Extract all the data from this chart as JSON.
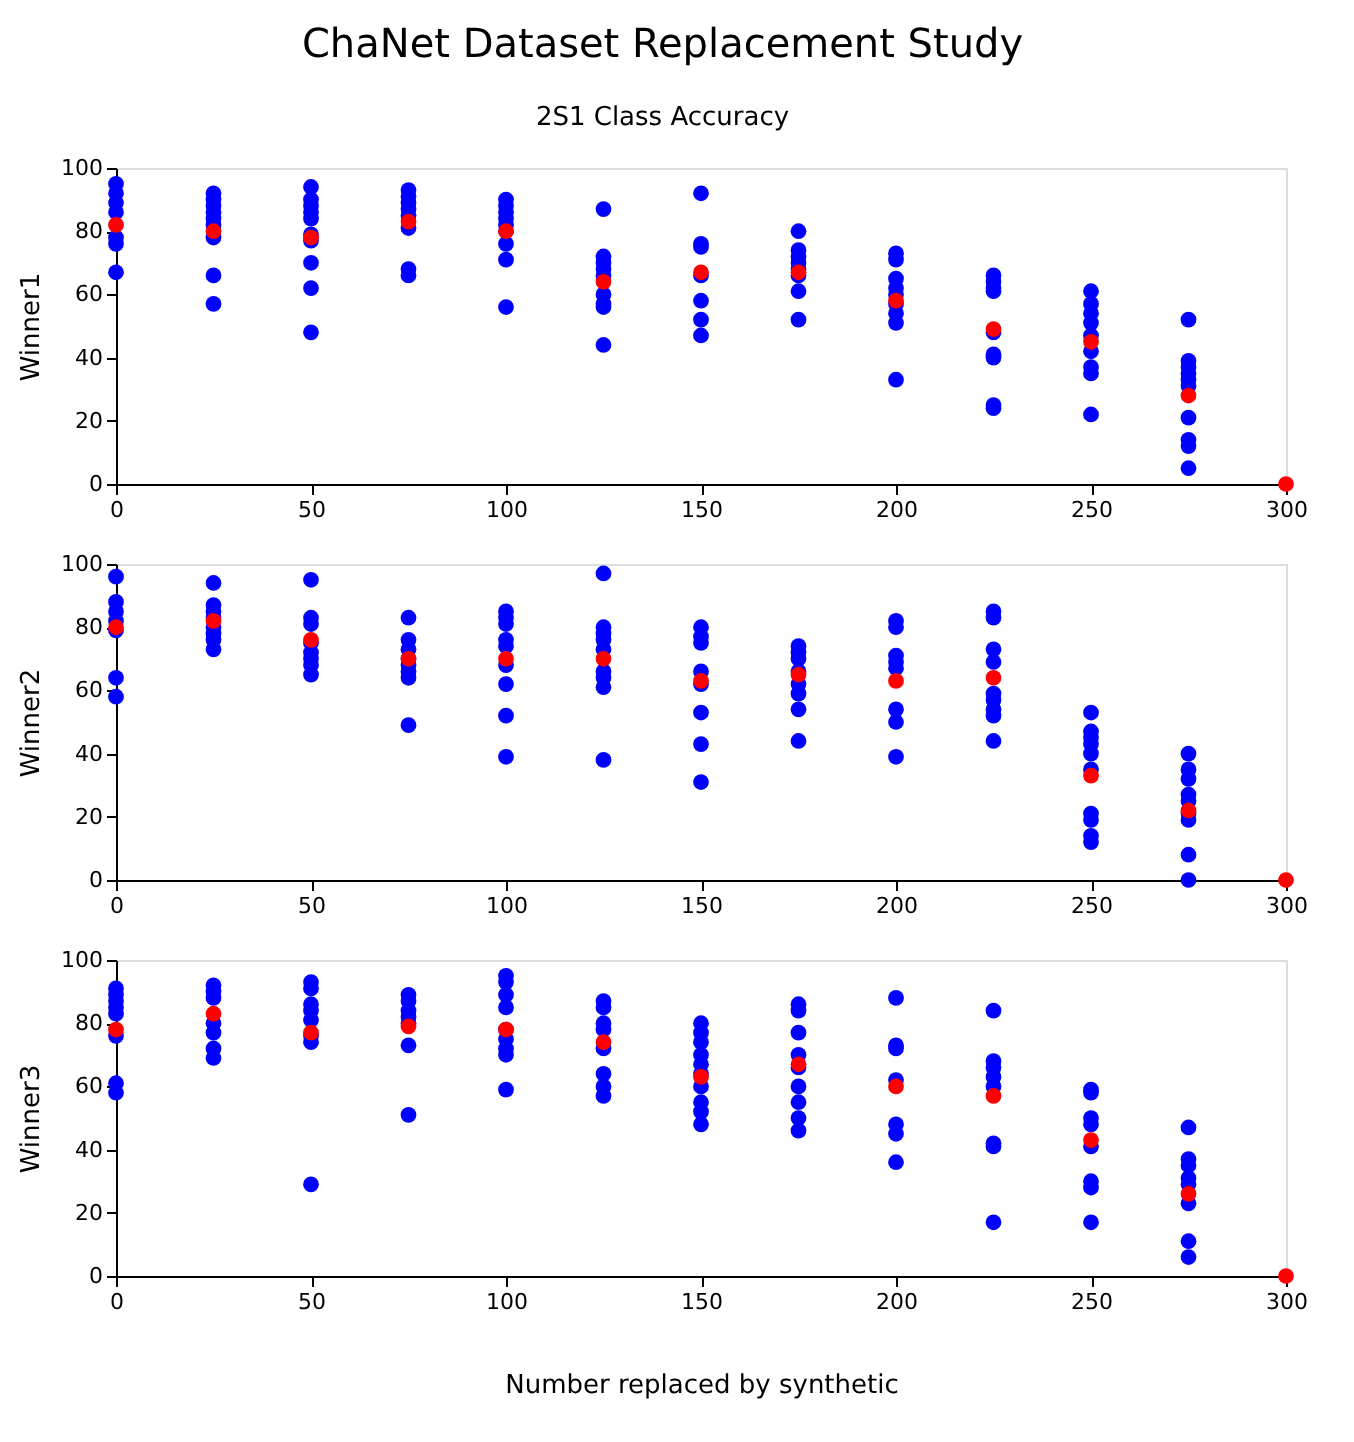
{
  "chart_data": [
    {
      "type": "scatter",
      "title": "ChaNet Dataset Replacement Study",
      "subtitle": "2S1 Class Accuracy",
      "ylabel": "Winner1",
      "marker": "circle",
      "xlim": [
        0,
        300
      ],
      "xticks": [
        0,
        50,
        100,
        150,
        200,
        250,
        300
      ],
      "ylim": [
        0,
        100
      ],
      "yticks": [
        0,
        20,
        40,
        60,
        80,
        100
      ],
      "series": [
        {
          "color": "#0000ff",
          "x": [
            0,
            0,
            0,
            0,
            0,
            0,
            0,
            25,
            25,
            25,
            25,
            25,
            25,
            25,
            25,
            25,
            50,
            50,
            50,
            50,
            50,
            50,
            50,
            50,
            50,
            50,
            75,
            75,
            75,
            75,
            75,
            75,
            75,
            75,
            100,
            100,
            100,
            100,
            100,
            100,
            100,
            100,
            100,
            125,
            125,
            125,
            125,
            125,
            125,
            125,
            125,
            125,
            150,
            150,
            150,
            150,
            150,
            150,
            150,
            175,
            175,
            175,
            175,
            175,
            175,
            175,
            175,
            200,
            200,
            200,
            200,
            200,
            200,
            200,
            200,
            200,
            225,
            225,
            225,
            225,
            225,
            225,
            225,
            225,
            225,
            250,
            250,
            250,
            250,
            250,
            250,
            250,
            250,
            250,
            275,
            275,
            275,
            275,
            275,
            275,
            275,
            275,
            275,
            275
          ],
          "values": [
            95,
            92,
            89,
            86,
            78,
            76,
            67,
            92,
            90,
            88,
            86,
            84,
            82,
            78,
            66,
            57,
            94,
            90,
            88,
            86,
            84,
            79,
            77,
            70,
            62,
            48,
            93,
            91,
            89,
            87,
            85,
            81,
            68,
            66,
            90,
            88,
            86,
            84,
            82,
            80,
            76,
            71,
            56,
            87,
            72,
            70,
            68,
            66,
            60,
            57,
            56,
            44,
            92,
            76,
            75,
            66,
            58,
            52,
            47,
            80,
            74,
            72,
            70,
            68,
            66,
            61,
            52,
            73,
            71,
            65,
            62,
            60,
            57,
            54,
            51,
            33,
            66,
            64,
            62,
            61,
            48,
            41,
            40,
            25,
            24,
            61,
            57,
            54,
            51,
            47,
            42,
            37,
            35,
            22,
            52,
            39,
            37,
            35,
            33,
            31,
            21,
            14,
            12,
            5
          ]
        },
        {
          "color": "#ff0000",
          "x": [
            0,
            25,
            50,
            75,
            100,
            125,
            150,
            175,
            200,
            225,
            250,
            275,
            300
          ],
          "values": [
            82,
            80,
            78,
            83,
            80,
            64,
            67,
            67,
            58,
            49,
            45,
            28,
            0
          ]
        }
      ]
    },
    {
      "type": "scatter",
      "ylabel": "Winner2",
      "marker": "circle",
      "xlim": [
        0,
        300
      ],
      "xticks": [
        0,
        50,
        100,
        150,
        200,
        250,
        300
      ],
      "ylim": [
        0,
        100
      ],
      "yticks": [
        0,
        20,
        40,
        60,
        80,
        100
      ],
      "series": [
        {
          "color": "#0000ff",
          "x": [
            0,
            0,
            0,
            0,
            0,
            0,
            0,
            25,
            25,
            25,
            25,
            25,
            25,
            25,
            25,
            50,
            50,
            50,
            50,
            50,
            50,
            50,
            50,
            75,
            75,
            75,
            75,
            75,
            75,
            75,
            75,
            100,
            100,
            100,
            100,
            100,
            100,
            100,
            100,
            100,
            125,
            125,
            125,
            125,
            125,
            125,
            125,
            125,
            125,
            150,
            150,
            150,
            150,
            150,
            150,
            150,
            150,
            175,
            175,
            175,
            175,
            175,
            175,
            175,
            175,
            200,
            200,
            200,
            200,
            200,
            200,
            200,
            200,
            225,
            225,
            225,
            225,
            225,
            225,
            225,
            225,
            225,
            250,
            250,
            250,
            250,
            250,
            250,
            250,
            250,
            250,
            250,
            275,
            275,
            275,
            275,
            275,
            275,
            275,
            275,
            275
          ],
          "values": [
            96,
            88,
            85,
            82,
            79,
            64,
            58,
            94,
            87,
            85,
            83,
            80,
            78,
            76,
            73,
            95,
            83,
            81,
            75,
            72,
            70,
            68,
            65,
            83,
            76,
            73,
            70,
            68,
            66,
            64,
            49,
            85,
            83,
            81,
            76,
            74,
            68,
            62,
            52,
            39,
            97,
            80,
            78,
            76,
            73,
            66,
            64,
            61,
            38,
            80,
            77,
            75,
            66,
            62,
            53,
            43,
            31,
            74,
            72,
            70,
            66,
            62,
            59,
            54,
            44,
            82,
            80,
            71,
            69,
            67,
            54,
            50,
            39,
            85,
            83,
            73,
            69,
            59,
            57,
            54,
            52,
            44,
            53,
            47,
            45,
            43,
            40,
            35,
            21,
            19,
            14,
            12,
            40,
            35,
            32,
            27,
            25,
            21,
            19,
            8,
            0
          ]
        },
        {
          "color": "#ff0000",
          "x": [
            0,
            25,
            50,
            75,
            100,
            125,
            150,
            175,
            200,
            225,
            250,
            275,
            300
          ],
          "values": [
            80,
            82,
            76,
            70,
            70,
            70,
            63,
            65,
            63,
            64,
            33,
            22,
            0
          ]
        }
      ]
    },
    {
      "type": "scatter",
      "ylabel": "Winner3",
      "xlabel": "Number replaced by synthetic",
      "marker": "circle",
      "xlim": [
        0,
        300
      ],
      "xticks": [
        0,
        50,
        100,
        150,
        200,
        250,
        300
      ],
      "ylim": [
        0,
        100
      ],
      "yticks": [
        0,
        20,
        40,
        60,
        80,
        100
      ],
      "series": [
        {
          "color": "#0000ff",
          "x": [
            0,
            0,
            0,
            0,
            0,
            0,
            0,
            0,
            25,
            25,
            25,
            25,
            25,
            25,
            25,
            50,
            50,
            50,
            50,
            50,
            50,
            50,
            50,
            75,
            75,
            75,
            75,
            75,
            75,
            75,
            100,
            100,
            100,
            100,
            100,
            100,
            100,
            100,
            100,
            125,
            125,
            125,
            125,
            125,
            125,
            125,
            125,
            150,
            150,
            150,
            150,
            150,
            150,
            150,
            150,
            150,
            150,
            175,
            175,
            175,
            175,
            175,
            175,
            175,
            175,
            175,
            200,
            200,
            200,
            200,
            200,
            200,
            200,
            225,
            225,
            225,
            225,
            225,
            225,
            225,
            225,
            250,
            250,
            250,
            250,
            250,
            250,
            250,
            250,
            275,
            275,
            275,
            275,
            275,
            275,
            275,
            275
          ],
          "values": [
            91,
            89,
            87,
            85,
            83,
            76,
            61,
            58,
            92,
            90,
            88,
            80,
            77,
            72,
            69,
            93,
            91,
            86,
            84,
            81,
            76,
            74,
            29,
            89,
            87,
            84,
            82,
            80,
            73,
            51,
            95,
            93,
            89,
            85,
            78,
            75,
            72,
            70,
            59,
            87,
            85,
            80,
            78,
            72,
            64,
            60,
            57,
            80,
            77,
            74,
            70,
            67,
            64,
            60,
            55,
            52,
            48,
            86,
            84,
            77,
            70,
            66,
            60,
            55,
            50,
            46,
            88,
            73,
            72,
            62,
            48,
            45,
            36,
            84,
            68,
            66,
            63,
            60,
            42,
            41,
            17,
            59,
            58,
            50,
            48,
            41,
            30,
            28,
            17,
            47,
            37,
            35,
            31,
            29,
            23,
            11,
            6
          ]
        },
        {
          "color": "#ff0000",
          "x": [
            0,
            25,
            50,
            75,
            100,
            125,
            150,
            175,
            200,
            225,
            250,
            275,
            300
          ],
          "values": [
            78,
            83,
            77,
            79,
            78,
            74,
            63,
            67,
            60,
            57,
            43,
            26,
            0
          ]
        }
      ]
    }
  ]
}
